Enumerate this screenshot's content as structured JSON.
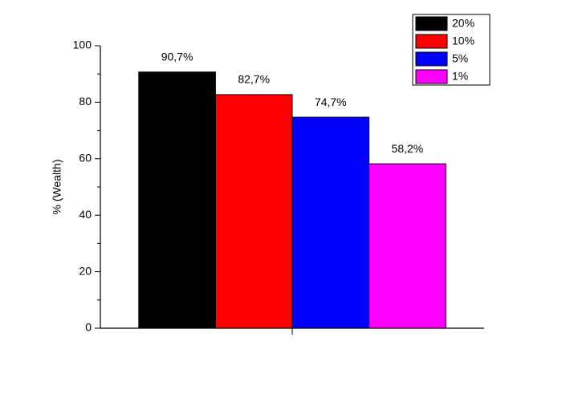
{
  "chart_data": {
    "type": "bar",
    "y_label": "% (Wealth)",
    "categories": [
      null
    ],
    "series": [
      {
        "name": "20%",
        "color": "#000000",
        "values": [
          90.7
        ],
        "value_labels": [
          "90,7%"
        ]
      },
      {
        "name": "10%",
        "color": "#ff0000",
        "values": [
          82.7
        ],
        "value_labels": [
          "82,7%"
        ]
      },
      {
        "name": "5%",
        "color": "#0000ff",
        "values": [
          74.7
        ],
        "value_labels": [
          "74,7%"
        ]
      },
      {
        "name": "1%",
        "color": "#ff00ff",
        "values": [
          58.2
        ],
        "value_labels": [
          "58,2%"
        ]
      }
    ],
    "ylim": [
      0,
      100
    ],
    "yticks": [
      0,
      20,
      40,
      60,
      80,
      100
    ],
    "minor_yticks": [
      10,
      30,
      50,
      70,
      90
    ],
    "grid": false,
    "legend": "top-right"
  }
}
